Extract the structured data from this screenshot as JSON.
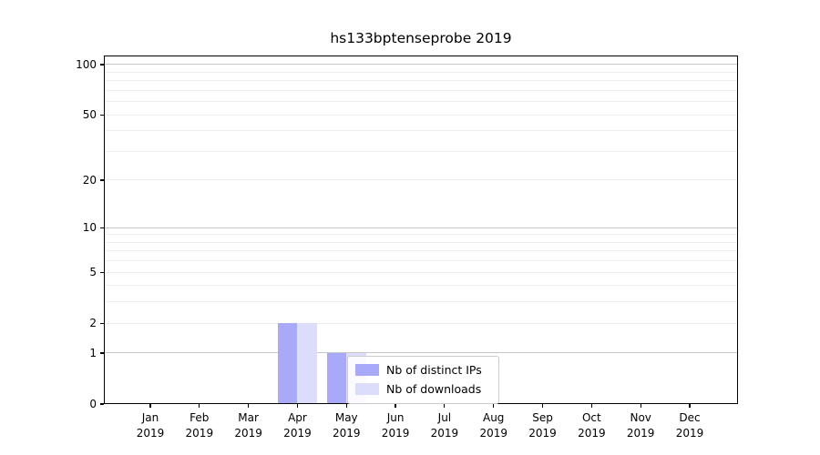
{
  "figure": {
    "title": "hs133bptenseprobe 2019",
    "background_color": "#ffffff"
  },
  "chart_data": {
    "type": "bar",
    "title": "hs133bptenseprobe 2019",
    "categories": [
      "Jan",
      "Feb",
      "Mar",
      "Apr",
      "May",
      "Jun",
      "Jul",
      "Aug",
      "Sep",
      "Oct",
      "Nov",
      "Dec"
    ],
    "category_year": "2019",
    "series": [
      {
        "name": "Nb of distinct IPs",
        "color": "#a9a9f9",
        "values": [
          0,
          0,
          0,
          2,
          1,
          0,
          0,
          0,
          0,
          0,
          0,
          0
        ]
      },
      {
        "name": "Nb of downloads",
        "color": "#dcdcfb",
        "values": [
          0,
          0,
          0,
          2,
          1,
          0,
          0,
          0,
          0,
          0,
          0,
          0
        ]
      }
    ],
    "xlabel": "",
    "ylabel": "",
    "yscale": "log1p",
    "ylim": [
      0,
      113
    ],
    "ytick_values": [
      0,
      1,
      2,
      5,
      10,
      20,
      50,
      100
    ],
    "ytick_labels": [
      "0",
      "1",
      "2",
      "5",
      "10",
      "20",
      "50",
      "100"
    ],
    "grid": {
      "enabled": true,
      "major_values": [
        1,
        10,
        100
      ],
      "minor_values": [
        2,
        3,
        4,
        5,
        6,
        7,
        8,
        9,
        20,
        30,
        40,
        50,
        60,
        70,
        80,
        90
      ],
      "major_color": "#c6c6c6",
      "minor_color": "#ededed"
    },
    "legend": {
      "position": "lower-center",
      "entries": [
        "Nb of distinct IPs",
        "Nb of downloads"
      ]
    },
    "axis_color": "#000000",
    "legend_border_color": "#cbcbcb"
  }
}
